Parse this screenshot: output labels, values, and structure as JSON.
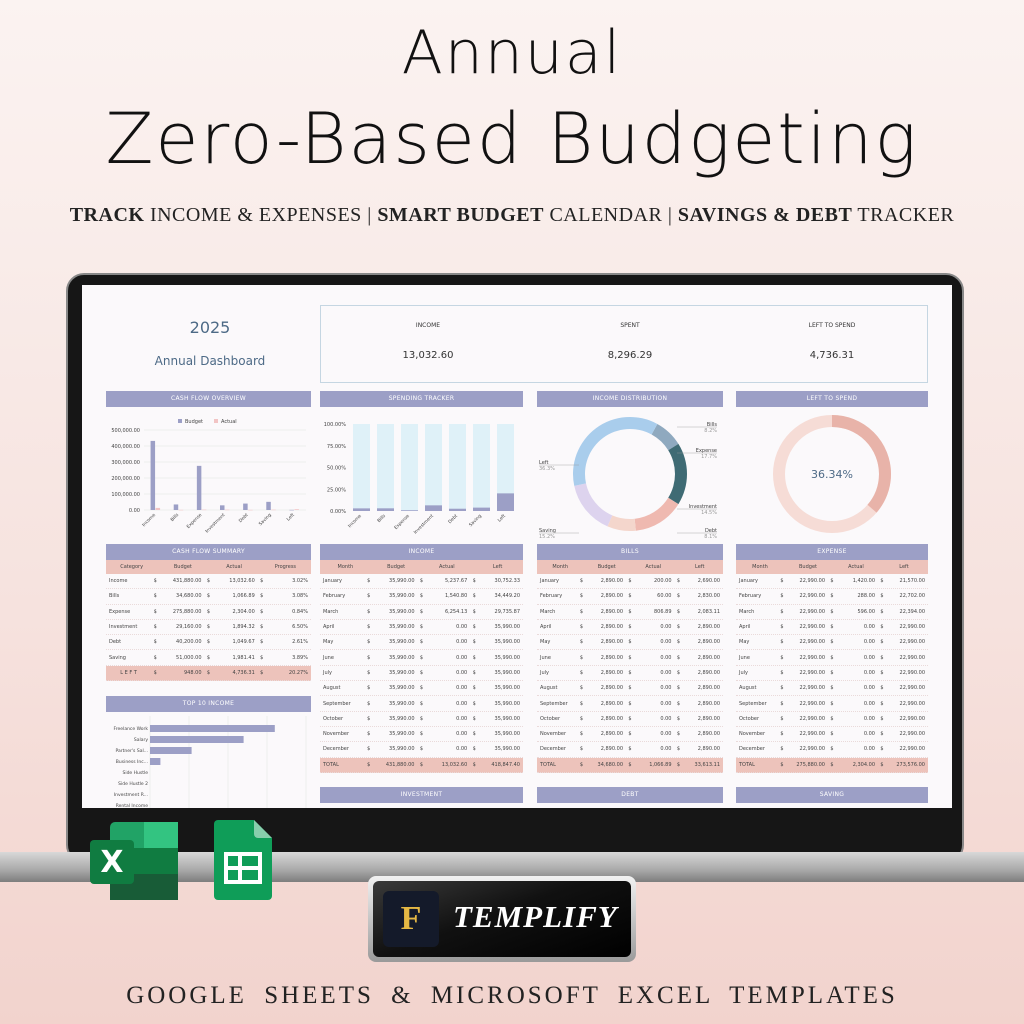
{
  "hero": {
    "title_line1": "Annual",
    "title_line2": "Zero-Based Budgeting",
    "subtitle": [
      {
        "text": "TRACK",
        "bold": true
      },
      {
        "text": " INCOME & EXPENSES | ",
        "bold": false
      },
      {
        "text": "SMART BUDGET",
        "bold": true
      },
      {
        "text": " CALENDAR | ",
        "bold": false
      },
      {
        "text": "SAVINGS & DEBT",
        "bold": true
      },
      {
        "text": " TRACKER",
        "bold": false
      }
    ],
    "footer": "GOOGLE SHEETS & MICROSOFT EXCEL TEMPLATES",
    "brand": "TEMPLIFY",
    "brand_monogram": "F"
  },
  "colors": {
    "header": "#9c9fc6",
    "subheader": "#edc3bb",
    "budget": "#9c9fc6",
    "actual": "#f2c4c4",
    "track": "#dff1f8"
  },
  "dashboard": {
    "year": "2025",
    "name": "Annual Dashboard",
    "kpis": [
      {
        "label": "INCOME",
        "value": "13,032.60"
      },
      {
        "label": "SPENT",
        "value": "8,296.29"
      },
      {
        "label": "LEFT TO SPEND",
        "value": "4,736.31"
      }
    ],
    "panels": {
      "cash_flow_overview": "CASH FLOW OVERVIEW",
      "spending_tracker": "SPENDING TRACKER",
      "income_distribution": "INCOME DISTRIBUTION",
      "left_to_spend": "LEFT TO SPEND",
      "cash_flow_summary": "CASH FLOW SUMMARY",
      "income": "INCOME",
      "bills": "BILLS",
      "expense": "EXPENSE",
      "top10": "TOP 10 INCOME",
      "investment": "INVESTMENT",
      "debt": "DEBT",
      "saving": "SAVING"
    },
    "left_to_spend_pct": "36.34%",
    "left_to_spend_fraction": 0.3634
  },
  "chart_data": [
    {
      "type": "bar",
      "categories": [
        "Income",
        "Bills",
        "Expense",
        "Investment",
        "Debt",
        "Saving",
        "Left"
      ],
      "series": [
        {
          "name": "Budget",
          "values": [
            431880,
            34680,
            275880,
            29160,
            40200,
            51000,
            948
          ]
        },
        {
          "name": "Actual",
          "values": [
            13032.6,
            1066.89,
            2304.0,
            1894.32,
            1049.67,
            1981.41,
            4736.31
          ]
        }
      ],
      "ylim": [
        0,
        500000
      ],
      "yticks": [
        "0.00",
        "100,000.00",
        "200,000.00",
        "300,000.00",
        "400,000.00",
        "500,000.00"
      ],
      "legend": "top",
      "grid": true
    },
    {
      "type": "bar",
      "categories": [
        "Income",
        "Bills",
        "Expense",
        "Investment",
        "Debt",
        "Saving",
        "Left"
      ],
      "values": [
        3.02,
        3.08,
        0.84,
        6.5,
        2.61,
        3.89,
        20.27
      ],
      "ylim": [
        0,
        100
      ],
      "yticks": [
        "0.00%",
        "25.00%",
        "50.00%",
        "75.00%",
        "100.00%"
      ],
      "grid": true
    },
    {
      "type": "pie",
      "labels": [
        "Bills",
        "Expense",
        "Investment",
        "Debt",
        "Saving",
        "Left"
      ],
      "values": [
        8.2,
        17.7,
        14.5,
        8.1,
        15.2,
        36.3
      ],
      "value_labels": [
        "8.2%",
        "17.7%",
        "14.5%",
        "8.1%",
        "15.2%",
        "36.3%"
      ],
      "colors": [
        "#8fa9bf",
        "#3f6b74",
        "#efb9b0",
        "#f4d6cc",
        "#ddd3ee",
        "#a9cdec"
      ]
    },
    {
      "type": "bar",
      "orientation": "horizontal",
      "categories": [
        "Freelance Work",
        "Salary",
        "Partner's Sal...",
        "Business Inc...",
        "Side Hustle",
        "Side Hustle 2",
        "Investment R...",
        "Rental Income"
      ],
      "values": [
        6000,
        4500,
        2000,
        500,
        0,
        0,
        0,
        0
      ]
    }
  ],
  "cash_flow_summary": {
    "headers": [
      "Category",
      "Budget",
      "Actual",
      "Progress"
    ],
    "rows": [
      [
        "Income",
        "431,880.00",
        "13,032.60",
        "3.02%"
      ],
      [
        "Bills",
        "34,680.00",
        "1,066.89",
        "3.08%"
      ],
      [
        "Expense",
        "275,880.00",
        "2,304.00",
        "0.84%"
      ],
      [
        "Investment",
        "29,160.00",
        "1,894.32",
        "6.50%"
      ],
      [
        "Debt",
        "40,200.00",
        "1,049.67",
        "2.61%"
      ],
      [
        "Saving",
        "51,000.00",
        "1,981.41",
        "3.89%"
      ]
    ],
    "total": [
      "L E F T",
      "948.00",
      "4,736.31",
      "20.27%"
    ]
  },
  "monthly_headers": [
    "Month",
    "Budget",
    "Actual",
    "Left"
  ],
  "income_table": {
    "rows": [
      [
        "January",
        "35,990.00",
        "5,237.67",
        "30,752.33"
      ],
      [
        "February",
        "35,990.00",
        "1,540.80",
        "34,449.20"
      ],
      [
        "March",
        "35,990.00",
        "6,254.13",
        "29,735.87"
      ],
      [
        "April",
        "35,990.00",
        "0.00",
        "35,990.00"
      ],
      [
        "May",
        "35,990.00",
        "0.00",
        "35,990.00"
      ],
      [
        "June",
        "35,990.00",
        "0.00",
        "35,990.00"
      ],
      [
        "July",
        "35,990.00",
        "0.00",
        "35,990.00"
      ],
      [
        "August",
        "35,990.00",
        "0.00",
        "35,990.00"
      ],
      [
        "September",
        "35,990.00",
        "0.00",
        "35,990.00"
      ],
      [
        "October",
        "35,990.00",
        "0.00",
        "35,990.00"
      ],
      [
        "November",
        "35,990.00",
        "0.00",
        "35,990.00"
      ],
      [
        "December",
        "35,990.00",
        "0.00",
        "35,990.00"
      ]
    ],
    "total": [
      "TOTAL",
      "431,880.00",
      "13,032.60",
      "418,847.40"
    ]
  },
  "bills_table": {
    "rows": [
      [
        "January",
        "2,890.00",
        "200.00",
        "2,690.00"
      ],
      [
        "February",
        "2,890.00",
        "60.00",
        "2,830.00"
      ],
      [
        "March",
        "2,890.00",
        "806.89",
        "2,083.11"
      ],
      [
        "April",
        "2,890.00",
        "0.00",
        "2,890.00"
      ],
      [
        "May",
        "2,890.00",
        "0.00",
        "2,890.00"
      ],
      [
        "June",
        "2,890.00",
        "0.00",
        "2,890.00"
      ],
      [
        "July",
        "2,890.00",
        "0.00",
        "2,890.00"
      ],
      [
        "August",
        "2,890.00",
        "0.00",
        "2,890.00"
      ],
      [
        "September",
        "2,890.00",
        "0.00",
        "2,890.00"
      ],
      [
        "October",
        "2,890.00",
        "0.00",
        "2,890.00"
      ],
      [
        "November",
        "2,890.00",
        "0.00",
        "2,890.00"
      ],
      [
        "December",
        "2,890.00",
        "0.00",
        "2,890.00"
      ]
    ],
    "total": [
      "TOTAL",
      "34,680.00",
      "1,066.89",
      "33,613.11"
    ]
  },
  "expense_table": {
    "rows": [
      [
        "January",
        "22,990.00",
        "1,420.00",
        "21,570.00"
      ],
      [
        "February",
        "22,990.00",
        "288.00",
        "22,702.00"
      ],
      [
        "March",
        "22,990.00",
        "596.00",
        "22,394.00"
      ],
      [
        "April",
        "22,990.00",
        "0.00",
        "22,990.00"
      ],
      [
        "May",
        "22,990.00",
        "0.00",
        "22,990.00"
      ],
      [
        "June",
        "22,990.00",
        "0.00",
        "22,990.00"
      ],
      [
        "July",
        "22,990.00",
        "0.00",
        "22,990.00"
      ],
      [
        "August",
        "22,990.00",
        "0.00",
        "22,990.00"
      ],
      [
        "September",
        "22,990.00",
        "0.00",
        "22,990.00"
      ],
      [
        "October",
        "22,990.00",
        "0.00",
        "22,990.00"
      ],
      [
        "November",
        "22,990.00",
        "0.00",
        "22,990.00"
      ],
      [
        "December",
        "22,990.00",
        "0.00",
        "22,990.00"
      ]
    ],
    "total": [
      "TOTAL",
      "275,880.00",
      "2,304.00",
      "273,576.00"
    ]
  },
  "currency_symbol": "$"
}
